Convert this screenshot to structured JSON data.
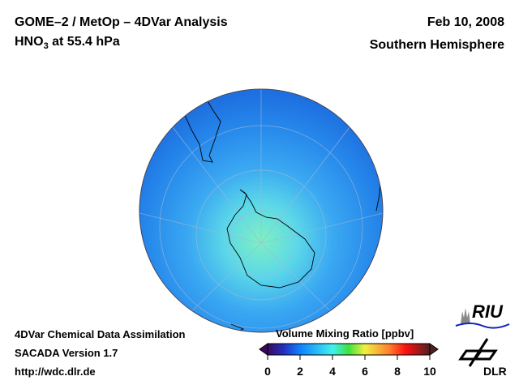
{
  "header": {
    "title_line1": "GOME–2 / MetOp – 4DVar Analysis",
    "species": "HNO",
    "species_sub": "3",
    "level": " at 55.4 hPa",
    "date": "Feb 10, 2008",
    "region": "Southern Hemisphere"
  },
  "footer": {
    "line1": "4DVar Chemical Data Assimilation",
    "line2": "SACADA Version 1.7",
    "line3": "http://wdc.dlr.de"
  },
  "colorbar": {
    "title": "Volume Mixing Ratio [ppbv]",
    "ticks": [
      "0",
      "2",
      "4",
      "6",
      "8",
      "10"
    ],
    "range": [
      0,
      10
    ]
  },
  "logos": {
    "riu": "RIU",
    "dlr": "DLR"
  },
  "colors": {
    "ocean_base": "#1f7fe8",
    "pole_high": "#6fe8c8",
    "mid": "#3fb0f0"
  }
}
